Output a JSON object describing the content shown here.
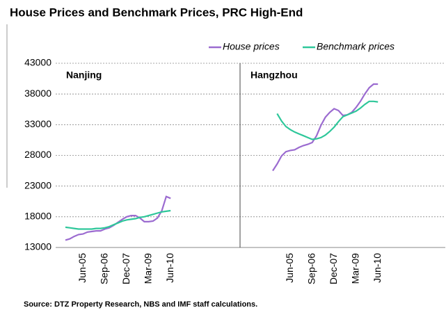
{
  "chart_data": {
    "type": "line",
    "title": "House Prices and Benchmark Prices, PRC High-End",
    "source": "Source: DTZ Property Research, NBS and IMF staff calculations.",
    "ylim": [
      13000,
      43000
    ],
    "yticks": [
      13000,
      18000,
      23000,
      28000,
      33000,
      38000,
      43000
    ],
    "grid": true,
    "legend_position": "top-right",
    "series": [
      {
        "name": "House prices",
        "color": "#9b6bd0"
      },
      {
        "name": "Benchmark prices",
        "color": "#2ec79a"
      }
    ],
    "panels": [
      {
        "title": "Nanjing",
        "categories": [
          null,
          null,
          null,
          null,
          "Jun-05",
          null,
          null,
          null,
          null,
          "Sep-06",
          null,
          null,
          null,
          null,
          "Dec-07",
          null,
          null,
          null,
          null,
          "Mar-09",
          null,
          null,
          null,
          null,
          "Jun-10"
        ],
        "series": [
          {
            "values": [
              14200,
              14400,
              14800,
              15100,
              15200,
              15500,
              15600,
              15700,
              15700,
              16000,
              16200,
              16600,
              17100,
              17600,
              18000,
              18200,
              18200,
              17800,
              17200,
              17200,
              17300,
              17800,
              19000,
              21300,
              21000
            ]
          },
          {
            "values": [
              16300,
              16200,
              16100,
              16000,
              16000,
              16000,
              16000,
              16100,
              16100,
              16200,
              16400,
              16700,
              17000,
              17300,
              17500,
              17600,
              17700,
              17900,
              18000,
              18200,
              18400,
              18600,
              18800,
              18900,
              19000
            ]
          }
        ]
      },
      {
        "title": "Hangzhou",
        "categories": [
          null,
          null,
          null,
          null,
          "Jun-05",
          null,
          null,
          null,
          null,
          "Sep-06",
          null,
          null,
          null,
          null,
          "Dec-07",
          null,
          null,
          null,
          null,
          "Mar-09",
          null,
          null,
          null,
          null,
          "Jun-10"
        ],
        "series": [
          {
            "values": [
              25500,
              26600,
              27900,
              28600,
              28800,
              28900,
              29300,
              29600,
              29800,
              30100,
              31200,
              32900,
              34200,
              35000,
              35600,
              35300,
              34500,
              34600,
              35000,
              35800,
              36800,
              38000,
              39000,
              39600,
              39600
            ]
          },
          {
            "values": [
              null,
              34800,
              33600,
              32700,
              32200,
              31800,
              31500,
              31200,
              30900,
              30600,
              30700,
              30900,
              31300,
              31900,
              32600,
              33500,
              34300,
              34600,
              34900,
              35200,
              35700,
              36300,
              36800,
              36800,
              36700
            ]
          }
        ]
      }
    ]
  }
}
